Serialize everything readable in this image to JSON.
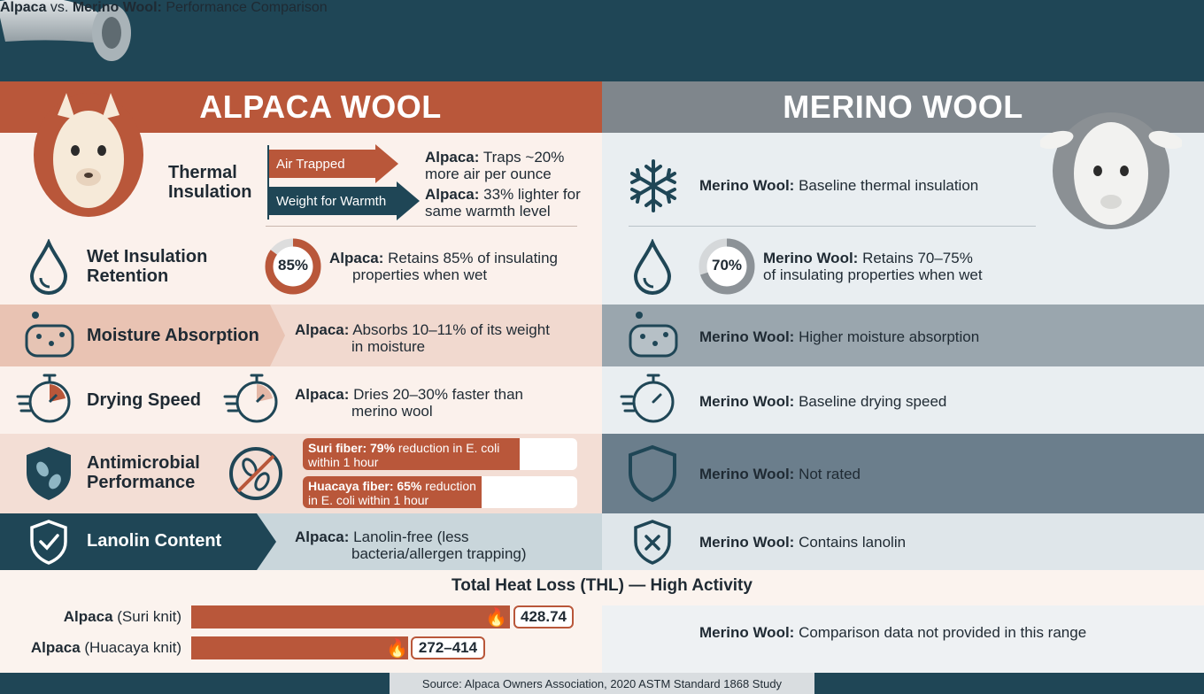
{
  "header": {
    "title_bold_1": "Alpaca",
    "title_mid": "vs.",
    "title_bold_2": "Merino Wool:",
    "title_rest": "Performance Comparison"
  },
  "left_header": "ALPACA WOOL",
  "right_header": "MERINO WOOL",
  "rows": {
    "thermal": {
      "label_l1": "Thermal",
      "label_l2": "Insulation",
      "arrow1": "Air Trapped",
      "arrow2": "Weight for Warmth",
      "alp1_b": "Alpaca:",
      "alp1_t1": "Traps ~20%",
      "alp1_t2": "more air per ounce",
      "alp2_b": "Alpaca:",
      "alp2_t1": "33% lighter for",
      "alp2_t2": "same warmth level",
      "mer_b": "Merino Wool:",
      "mer_t": "Baseline thermal insulation"
    },
    "wet": {
      "label_l1": "Wet Insulation",
      "label_l2": "Retention",
      "alp_pct": "85%",
      "alp_pct_value": 85,
      "alp_b": "Alpaca:",
      "alp_t1": "Retains 85% of insulating",
      "alp_t2": "properties when wet",
      "mer_pct": "70%",
      "mer_pct_value": 70,
      "mer_b": "Merino Wool:",
      "mer_t1": "Retains 70–75%",
      "mer_t2": "of insulating properties when wet"
    },
    "moisture": {
      "label": "Moisture Absorption",
      "alp_b": "Alpaca:",
      "alp_t1": "Absorbs 10–11% of its weight",
      "alp_t2": "in moisture",
      "mer_b": "Merino Wool:",
      "mer_t": "Higher moisture absorption"
    },
    "drying": {
      "label": "Drying Speed",
      "alp_b": "Alpaca:",
      "alp_t1": "Dries 20–30% faster than",
      "alp_t2": "merino wool",
      "mer_b": "Merino Wool:",
      "mer_t": "Baseline drying speed"
    },
    "antimicrobial": {
      "label_l1": "Antimicrobial",
      "label_l2": "Performance",
      "suri_b": "Suri fiber: 79%",
      "suri_t1": "reduction in E. coli",
      "suri_t2": "within 1 hour",
      "suri_value": 79,
      "hua_b": "Huacaya fiber: 65%",
      "hua_t1": "reduction",
      "hua_t2": "in E. coli within 1 hour",
      "hua_value": 65,
      "mer_b": "Merino Wool:",
      "mer_t": "Not rated"
    },
    "lanolin": {
      "label": "Lanolin Content",
      "alp_b": "Alpaca:",
      "alp_t1": "Lanolin-free (less",
      "alp_t2": "bacteria/allergen trapping)",
      "mer_b": "Merino Wool:",
      "mer_t": "Contains lanolin"
    }
  },
  "thl": {
    "title": "Total Heat Loss (THL) — High Activity",
    "suri_b": "Alpaca",
    "suri_t": "(Suri knit)",
    "suri_val": "428.74",
    "hua_b": "Alpaca",
    "hua_t": "(Huacaya knit)",
    "hua_val": "272–414",
    "mer_b": "Merino Wool:",
    "mer_t": "Comparison data not provided in this range"
  },
  "footer": "Source: Alpaca Owners Association, 2020 ASTM Standard 1868 Study",
  "colors": {
    "accent_rust": "#b9573a",
    "navy": "#1f4656",
    "gray": "#7f868c"
  }
}
